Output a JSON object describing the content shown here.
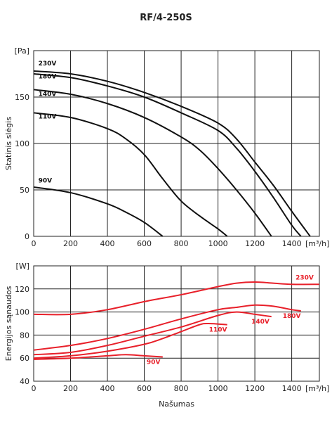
{
  "title": "RF/4-250S",
  "chart_data": [
    {
      "type": "line",
      "ylabel": "Statinis slėgis",
      "yunit": "[Pa]",
      "xunit": "[m³/h]",
      "xlim": [
        0,
        1550
      ],
      "ylim": [
        0,
        200
      ],
      "xticks": [
        "0",
        "200",
        "400",
        "600",
        "800",
        "1000",
        "1200",
        "1400"
      ],
      "yticks": [
        "0",
        "50",
        "100",
        "150"
      ],
      "grid": true,
      "color": "#111111",
      "series": [
        {
          "name": "230V",
          "points": [
            [
              0,
              178
            ],
            [
              200,
              175
            ],
            [
              400,
              167
            ],
            [
              600,
              155
            ],
            [
              800,
              140
            ],
            [
              1000,
              122
            ],
            [
              1100,
              105
            ],
            [
              1200,
              80
            ],
            [
              1300,
              55
            ],
            [
              1400,
              27
            ],
            [
              1500,
              0
            ]
          ]
        },
        {
          "name": "180V",
          "points": [
            [
              0,
              175
            ],
            [
              200,
              171
            ],
            [
              400,
              162
            ],
            [
              600,
              150
            ],
            [
              800,
              133
            ],
            [
              1000,
              114
            ],
            [
              1100,
              95
            ],
            [
              1200,
              70
            ],
            [
              1300,
              42
            ],
            [
              1400,
              12
            ],
            [
              1450,
              0
            ]
          ]
        },
        {
          "name": "140V",
          "points": [
            [
              0,
              158
            ],
            [
              200,
              153
            ],
            [
              400,
              143
            ],
            [
              600,
              128
            ],
            [
              800,
              107
            ],
            [
              900,
              93
            ],
            [
              1000,
              73
            ],
            [
              1100,
              50
            ],
            [
              1200,
              25
            ],
            [
              1290,
              0
            ]
          ]
        },
        {
          "name": "110V",
          "points": [
            [
              0,
              133
            ],
            [
              200,
              128
            ],
            [
              400,
              116
            ],
            [
              500,
              105
            ],
            [
              600,
              88
            ],
            [
              700,
              62
            ],
            [
              800,
              38
            ],
            [
              900,
              22
            ],
            [
              1000,
              8
            ],
            [
              1050,
              0
            ]
          ]
        },
        {
          "name": "90V",
          "points": [
            [
              0,
              53
            ],
            [
              200,
              47
            ],
            [
              400,
              35
            ],
            [
              500,
              26
            ],
            [
              600,
              15
            ],
            [
              700,
              0
            ]
          ]
        }
      ]
    },
    {
      "type": "line",
      "xlabel": "Našumas",
      "ylabel": "Energijos sąnaudos",
      "yunit": "[W]",
      "xunit": "[m³/h]",
      "xlim": [
        0,
        1550
      ],
      "ylim": [
        40,
        140
      ],
      "xticks": [
        "0",
        "200",
        "400",
        "600",
        "800",
        "1000",
        "1200",
        "1400"
      ],
      "yticks": [
        "40",
        "60",
        "80",
        "100",
        "120"
      ],
      "grid": true,
      "color": "#e8202a",
      "series": [
        {
          "name": "230V",
          "points": [
            [
              0,
              98
            ],
            [
              200,
              98
            ],
            [
              400,
              102
            ],
            [
              600,
              109
            ],
            [
              800,
              115
            ],
            [
              1000,
              122
            ],
            [
              1100,
              125
            ],
            [
              1200,
              126
            ],
            [
              1300,
              125
            ],
            [
              1400,
              124
            ],
            [
              1550,
              124
            ]
          ]
        },
        {
          "name": "180V",
          "points": [
            [
              0,
              67
            ],
            [
              200,
              71
            ],
            [
              400,
              77
            ],
            [
              600,
              85
            ],
            [
              800,
              94
            ],
            [
              1000,
              102
            ],
            [
              1100,
              104
            ],
            [
              1200,
              106
            ],
            [
              1300,
              105
            ],
            [
              1400,
              102
            ],
            [
              1450,
              101
            ]
          ]
        },
        {
          "name": "140V",
          "points": [
            [
              0,
              63
            ],
            [
              200,
              65
            ],
            [
              400,
              71
            ],
            [
              600,
              79
            ],
            [
              800,
              87
            ],
            [
              1000,
              97
            ],
            [
              1100,
              100
            ],
            [
              1200,
              98
            ],
            [
              1290,
              96
            ]
          ]
        },
        {
          "name": "110V",
          "points": [
            [
              0,
              60
            ],
            [
              200,
              62
            ],
            [
              400,
              66
            ],
            [
              600,
              72
            ],
            [
              700,
              77
            ],
            [
              800,
              83
            ],
            [
              900,
              89
            ],
            [
              950,
              90
            ],
            [
              1050,
              89
            ]
          ]
        },
        {
          "name": "90V",
          "points": [
            [
              0,
              59
            ],
            [
              200,
              60
            ],
            [
              400,
              62
            ],
            [
              500,
              63
            ],
            [
              600,
              62
            ],
            [
              700,
              61
            ]
          ]
        }
      ]
    }
  ]
}
